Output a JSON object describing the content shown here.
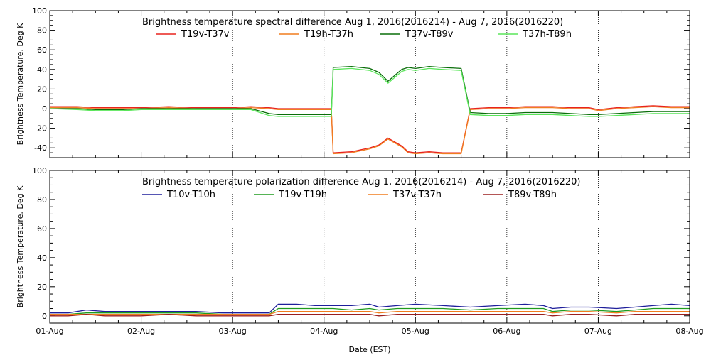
{
  "chart_data": [
    {
      "type": "line",
      "title": "Brightness temperature spectral difference     Aug  1, 2016(2016214) - Aug  7, 2016(2016220)",
      "ylabel": "Brightness Temperature, Deg K",
      "xlabel": "",
      "ylim": [
        -50,
        100
      ],
      "yticks": [
        -40,
        -20,
        0,
        20,
        40,
        60,
        80,
        100
      ],
      "xlim": [
        0,
        7
      ],
      "xtick_labels": [],
      "grid": true,
      "legend_position": "top",
      "series": [
        {
          "name": "T19v-T37v",
          "color": "#e8231e",
          "x": [
            0,
            0.3,
            0.5,
            0.8,
            1.0,
            1.3,
            1.6,
            1.9,
            2.0,
            2.2,
            2.4,
            2.5,
            2.7,
            2.9,
            3.08,
            3.1,
            3.3,
            3.5,
            3.6,
            3.7,
            3.85,
            3.92,
            4.0,
            4.15,
            4.3,
            4.5,
            4.6,
            4.8,
            5.0,
            5.2,
            5.5,
            5.7,
            5.9,
            6.0,
            6.2,
            6.4,
            6.6,
            6.8,
            7.0
          ],
          "y": [
            2,
            2,
            1,
            1,
            1,
            2,
            1,
            1,
            1,
            2,
            1,
            0,
            0,
            0,
            0,
            -45,
            -44,
            -40,
            -37,
            -30,
            -38,
            -44,
            -45,
            -44,
            -45,
            -45,
            0,
            1,
            1,
            2,
            2,
            1,
            1,
            -1,
            1,
            2,
            3,
            2,
            2
          ]
        },
        {
          "name": "T19h-T37h",
          "color": "#f07d1e",
          "x": [
            0,
            0.3,
            0.5,
            0.8,
            1.0,
            1.3,
            1.6,
            1.9,
            2.0,
            2.2,
            2.4,
            2.5,
            2.7,
            2.9,
            3.08,
            3.1,
            3.3,
            3.5,
            3.6,
            3.7,
            3.85,
            3.92,
            4.0,
            4.15,
            4.3,
            4.5,
            4.6,
            4.8,
            5.0,
            5.2,
            5.5,
            5.7,
            5.9,
            6.0,
            6.2,
            6.4,
            6.6,
            6.8,
            7.0
          ],
          "y": [
            1,
            1,
            0,
            0,
            0,
            1,
            0,
            0,
            0,
            1,
            0,
            -1,
            -1,
            -1,
            -1,
            -46,
            -45,
            -41,
            -38,
            -31,
            -39,
            -45,
            -46,
            -45,
            -46,
            -46,
            -1,
            0,
            0,
            1,
            1,
            0,
            0,
            -2,
            0,
            1,
            2,
            1,
            1
          ]
        },
        {
          "name": "T37v-T89v",
          "color": "#0a6e0a",
          "x": [
            0,
            0.3,
            0.5,
            0.8,
            1.0,
            1.3,
            1.6,
            1.9,
            2.0,
            2.2,
            2.4,
            2.5,
            2.7,
            2.9,
            3.08,
            3.1,
            3.3,
            3.5,
            3.6,
            3.7,
            3.85,
            3.92,
            4.0,
            4.15,
            4.3,
            4.5,
            4.6,
            4.8,
            5.0,
            5.2,
            5.5,
            5.7,
            5.9,
            6.0,
            6.2,
            6.4,
            6.6,
            6.8,
            7.0
          ],
          "y": [
            0,
            0,
            -1,
            -1,
            0,
            0,
            0,
            0,
            0,
            0,
            -5,
            -6,
            -6,
            -6,
            -6,
            42,
            43,
            41,
            37,
            28,
            40,
            42,
            41,
            43,
            42,
            41,
            -4,
            -5,
            -5,
            -4,
            -4,
            -5,
            -6,
            -6,
            -5,
            -4,
            -3,
            -3,
            -3
          ]
        },
        {
          "name": "T37h-T89h",
          "color": "#5ae65a",
          "x": [
            0,
            0.3,
            0.5,
            0.8,
            1.0,
            1.3,
            1.6,
            1.9,
            2.0,
            2.2,
            2.4,
            2.5,
            2.7,
            2.9,
            3.08,
            3.1,
            3.3,
            3.5,
            3.6,
            3.7,
            3.85,
            3.92,
            4.0,
            4.15,
            4.3,
            4.5,
            4.6,
            4.8,
            5.0,
            5.2,
            5.5,
            5.7,
            5.9,
            6.0,
            6.2,
            6.4,
            6.6,
            6.8,
            7.0
          ],
          "y": [
            0,
            -1,
            -2,
            -2,
            -1,
            -1,
            -1,
            -1,
            -1,
            -1,
            -7,
            -8,
            -8,
            -8,
            -8,
            40,
            41,
            39,
            35,
            26,
            38,
            40,
            39,
            41,
            40,
            39,
            -6,
            -7,
            -7,
            -6,
            -6,
            -7,
            -8,
            -8,
            -7,
            -6,
            -5,
            -5,
            -5
          ]
        }
      ]
    },
    {
      "type": "line",
      "title": "Brightness temperature polarization difference     Aug  1, 2016(2016214) - Aug  7, 2016(2016220)",
      "ylabel": "Brightness Temperature, Deg K",
      "xlabel": "Date (EST)",
      "ylim": [
        -5,
        100
      ],
      "yticks": [
        0,
        20,
        40,
        60,
        80,
        100
      ],
      "xlim": [
        0,
        7
      ],
      "xtick_labels": [
        "01-Aug",
        "02-Aug",
        "03-Aug",
        "04-Aug",
        "05-Aug",
        "06-Aug",
        "07-Aug",
        "08-Aug"
      ],
      "grid": true,
      "legend_position": "top",
      "series": [
        {
          "name": "T10v-T10h",
          "color": "#1e1e9b",
          "x": [
            0,
            0.2,
            0.4,
            0.6,
            0.8,
            1.0,
            1.3,
            1.6,
            1.9,
            2.1,
            2.3,
            2.4,
            2.5,
            2.7,
            2.9,
            3.1,
            3.3,
            3.5,
            3.6,
            3.8,
            4.0,
            4.3,
            4.6,
            4.9,
            5.2,
            5.4,
            5.5,
            5.7,
            5.9,
            6.2,
            6.4,
            6.6,
            6.8,
            7.0
          ],
          "y": [
            2,
            2,
            4,
            3,
            3,
            3,
            3,
            3,
            2,
            2,
            2,
            2,
            8,
            8,
            7,
            7,
            7,
            8,
            6,
            7,
            8,
            7,
            6,
            7,
            8,
            7,
            5,
            6,
            6,
            5,
            6,
            7,
            8,
            7
          ]
        },
        {
          "name": "T19v-T19h",
          "color": "#1e9b1e",
          "x": [
            0,
            0.2,
            0.4,
            0.6,
            0.8,
            1.0,
            1.3,
            1.6,
            1.9,
            2.1,
            2.3,
            2.4,
            2.5,
            2.7,
            2.9,
            3.1,
            3.3,
            3.5,
            3.6,
            3.8,
            4.0,
            4.3,
            4.6,
            4.9,
            5.2,
            5.4,
            5.5,
            5.7,
            5.9,
            6.2,
            6.4,
            6.6,
            6.8,
            7.0
          ],
          "y": [
            1,
            1,
            2,
            2,
            2,
            2,
            2,
            2,
            1,
            1,
            1,
            1,
            5,
            5,
            5,
            5,
            4,
            5,
            4,
            5,
            5,
            5,
            4,
            5,
            5,
            5,
            3,
            4,
            4,
            3,
            4,
            5,
            5,
            5
          ]
        },
        {
          "name": "T37v-T37h",
          "color": "#f07d1e",
          "x": [
            0,
            0.2,
            0.4,
            0.6,
            0.8,
            1.0,
            1.3,
            1.6,
            1.9,
            2.1,
            2.3,
            2.4,
            2.5,
            2.7,
            2.9,
            3.1,
            3.3,
            3.5,
            3.6,
            3.8,
            4.0,
            4.3,
            4.6,
            4.9,
            5.2,
            5.4,
            5.5,
            5.7,
            5.9,
            6.2,
            6.4,
            6.6,
            6.8,
            7.0
          ],
          "y": [
            1,
            1,
            1,
            1,
            1,
            1,
            1,
            1,
            1,
            1,
            1,
            1,
            3,
            3,
            3,
            3,
            3,
            3,
            2,
            3,
            3,
            3,
            3,
            3,
            3,
            3,
            2,
            3,
            3,
            2,
            3,
            3,
            3,
            3
          ]
        },
        {
          "name": "T89v-T89h",
          "color": "#9b1e1e",
          "x": [
            0,
            0.2,
            0.4,
            0.6,
            0.8,
            1.0,
            1.3,
            1.6,
            1.9,
            2.1,
            2.3,
            2.4,
            2.5,
            2.7,
            2.9,
            3.1,
            3.3,
            3.5,
            3.6,
            3.8,
            4.0,
            4.3,
            4.6,
            4.9,
            5.2,
            5.4,
            5.5,
            5.7,
            5.9,
            6.2,
            6.4,
            6.6,
            6.8,
            7.0
          ],
          "y": [
            0,
            0,
            1,
            0,
            0,
            0,
            1,
            0,
            0,
            0,
            0,
            0,
            1,
            1,
            1,
            1,
            1,
            1,
            0,
            1,
            1,
            1,
            1,
            1,
            1,
            1,
            0,
            1,
            1,
            0,
            1,
            1,
            1,
            1
          ]
        }
      ]
    }
  ]
}
